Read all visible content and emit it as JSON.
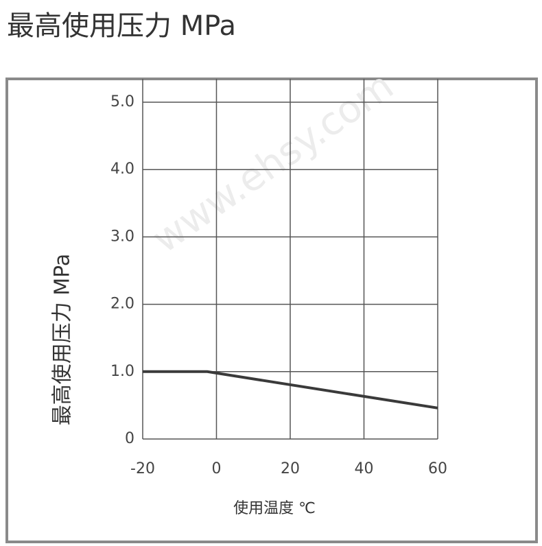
{
  "chart_data": {
    "type": "line",
    "title": "最高使用压力 MPa",
    "y_label": "最高使用压力 MPa",
    "x_label": "使用温度 ℃",
    "watermark": "www.ehsy.com",
    "series": [
      {
        "color": "#3a3a3a",
        "x": [
          -20,
          -2.5,
          60
        ],
        "values": [
          1.0,
          1.0,
          0.46
        ]
      }
    ],
    "xlim": [
      -20,
      60
    ],
    "xticks": [
      -20,
      0,
      20,
      40,
      60
    ],
    "ylim": [
      0,
      5
    ],
    "yticks": [
      0,
      {
        "value": 1,
        "label": "1.0"
      },
      {
        "value": 2,
        "label": "2.0"
      },
      {
        "value": 3,
        "label": "3.0"
      },
      {
        "value": 4,
        "label": "4.0"
      },
      {
        "value": 5,
        "label": "5.0"
      }
    ],
    "grid": true
  }
}
